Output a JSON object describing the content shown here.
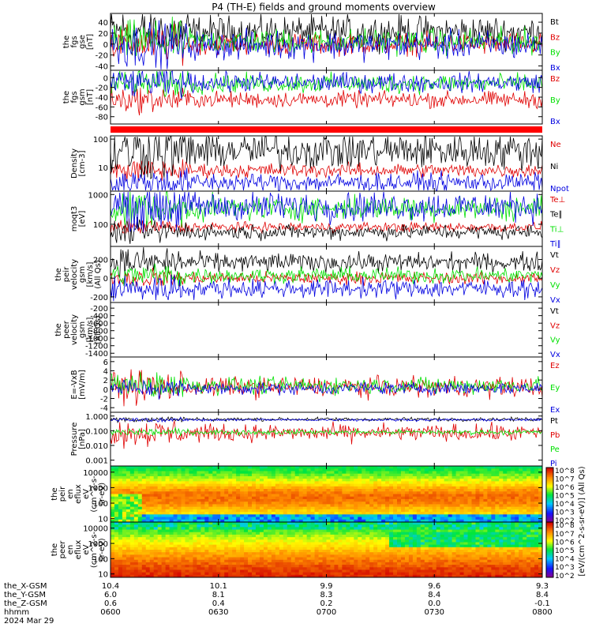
{
  "title": "P4 (TH-E) fields and ground moments overview",
  "chart_data": [
    {
      "id": "fgs_gse",
      "type": "line",
      "ylabel": [
        "the",
        "fgs",
        "gse",
        "[nT]"
      ],
      "ticks": [
        "40",
        "20",
        "0",
        "-20",
        "-40"
      ],
      "tick_values": [
        40,
        20,
        0,
        -20,
        -40
      ],
      "ylim": [
        -48,
        56
      ],
      "series": [
        {
          "name": "Bt",
          "color": "#000000",
          "base": 22,
          "amp": 18
        },
        {
          "name": "Bz",
          "color": "#e00000",
          "base": 0,
          "amp": 12
        },
        {
          "name": "By",
          "color": "#00e000",
          "base": 5,
          "amp": 14
        },
        {
          "name": "Bx",
          "color": "#0000e0",
          "base": -2,
          "amp": 16
        }
      ]
    },
    {
      "id": "fgs_gsm",
      "type": "line",
      "ylabel": [
        "the",
        "fgs",
        "gsm",
        "[nT]"
      ],
      "ticks": [
        "0",
        "-20",
        "-40",
        "-60",
        "-80"
      ],
      "tick_values": [
        0,
        -20,
        -40,
        -60,
        -80
      ],
      "ylim": [
        -95,
        15
      ],
      "series": [
        {
          "name": "Bz",
          "color": "#e00000",
          "base": -45,
          "amp": 10
        },
        {
          "name": "By",
          "color": "#00e000",
          "base": -12,
          "amp": 12
        },
        {
          "name": "Bx",
          "color": "#0000e0",
          "base": -10,
          "amp": 12
        }
      ]
    },
    {
      "id": "density",
      "type": "line",
      "scale": "log",
      "ylabel": [
        "Density",
        "[cm-3]"
      ],
      "ticks": [
        "100",
        "10"
      ],
      "tick_values": [
        100,
        10
      ],
      "ylim": [
        1.5,
        130
      ],
      "series": [
        {
          "name": "Ne",
          "color": "#e00000",
          "base": 8,
          "amp": 0.3
        },
        {
          "name": "Ni",
          "color": "#000000",
          "base": 40,
          "amp": 0.8
        },
        {
          "name": "Npot",
          "color": "#0000e0",
          "base": 3,
          "amp": 0.4
        }
      ]
    },
    {
      "id": "temperature",
      "type": "line",
      "scale": "log",
      "ylabel": [
        "moqt3",
        "[eV]"
      ],
      "ticks": [
        "1000",
        "100"
      ],
      "tick_values": [
        1000,
        100
      ],
      "ylim": [
        18,
        1300
      ],
      "series": [
        {
          "name": "Te⊥",
          "color": "#e00000",
          "base": 80,
          "amp": 0.2
        },
        {
          "name": "Te∥",
          "color": "#000000",
          "base": 55,
          "amp": 0.3
        },
        {
          "name": "Ti⊥",
          "color": "#00e000",
          "base": 350,
          "amp": 0.5
        },
        {
          "name": "Ti∥",
          "color": "#0000e0",
          "base": 400,
          "amp": 0.6
        }
      ]
    },
    {
      "id": "peir_velocity",
      "type": "line",
      "ylabel": [
        "the",
        "peir",
        "velocity",
        "gsm",
        "[km/s]",
        "(All Qs)"
      ],
      "ticks": [
        "200",
        "0",
        "-200"
      ],
      "tick_values": [
        200,
        0,
        -200
      ],
      "ylim": [
        -260,
        340
      ],
      "series": [
        {
          "name": "Vt",
          "color": "#000000",
          "base": 170,
          "amp": 60
        },
        {
          "name": "Vz",
          "color": "#e00000",
          "base": 0,
          "amp": 40
        },
        {
          "name": "Vy",
          "color": "#00e000",
          "base": 30,
          "amp": 50
        },
        {
          "name": "Vx",
          "color": "#0000e0",
          "base": -110,
          "amp": 60
        }
      ]
    },
    {
      "id": "peer_velocity",
      "type": "line",
      "ylabel": [
        "the",
        "peer",
        "velocity",
        "gsm",
        "[km/s]",
        "(All Qs)"
      ],
      "ticks": [
        "-200",
        "-400",
        "-600",
        "-800",
        "-1000",
        "-1200",
        "-1400"
      ],
      "tick_values": [
        -200,
        -400,
        -600,
        -800,
        -1000,
        -1200,
        -1400
      ],
      "ylim": [
        -1500,
        -50
      ],
      "series": [
        {
          "name": "Vt",
          "color": "#000000"
        },
        {
          "name": "Vz",
          "color": "#e00000"
        },
        {
          "name": "Vy",
          "color": "#00e000"
        },
        {
          "name": "Vx",
          "color": "#0000e0"
        }
      ]
    },
    {
      "id": "e_field",
      "type": "line",
      "ylabel": [
        "E=-VxB",
        "[mV/m]"
      ],
      "ticks": [
        "6",
        "4",
        "2",
        "0",
        "-2",
        "-4"
      ],
      "tick_values": [
        6,
        4,
        2,
        0,
        -2,
        -4
      ],
      "ylim": [
        -5,
        7
      ],
      "series": [
        {
          "name": "Ez",
          "color": "#e00000",
          "base": 0.5,
          "amp": 1.3
        },
        {
          "name": "Ey",
          "color": "#00e000",
          "base": 0.8,
          "amp": 1.1
        },
        {
          "name": "Ex",
          "color": "#0000e0",
          "base": 0.2,
          "amp": 0.8
        }
      ]
    },
    {
      "id": "pressure",
      "type": "line",
      "scale": "log",
      "ylabel": [
        "Pressure",
        "[nPa]"
      ],
      "ticks": [
        "1.000",
        "0.100",
        "0.010",
        "0.001"
      ],
      "tick_values": [
        1,
        0.1,
        0.01,
        0.001
      ],
      "ylim": [
        0.0004,
        1.8
      ],
      "series": [
        {
          "name": "Pt",
          "color": "#000000",
          "base": 0.6,
          "amp": 0.15
        },
        {
          "name": "Pb",
          "color": "#e00000",
          "base": 0.07,
          "amp": 0.7
        },
        {
          "name": "Pe",
          "color": "#00e000",
          "base": 0.08,
          "amp": 0.2
        },
        {
          "name": "Pi",
          "color": "#0000e0",
          "base": 0.55,
          "amp": 0.1
        }
      ]
    },
    {
      "id": "peir_eflux",
      "type": "heatmap",
      "scale": "log",
      "ylabel": [
        "the",
        "peir",
        "en",
        "eflux",
        "eV",
        "(cm^2-s-",
        "sr-eV)"
      ],
      "ticks": [
        "10000",
        "1000",
        "100",
        "10"
      ],
      "tick_values": [
        10000,
        1000,
        100,
        10
      ],
      "ylim": [
        6,
        25000
      ]
    },
    {
      "id": "peer_eflux",
      "type": "heatmap",
      "scale": "log",
      "ylabel": [
        "the",
        "peer",
        "en",
        "eflux",
        "eV",
        "(cm^2-s-",
        "sr-eV)"
      ],
      "ticks": [
        "10000",
        "1000",
        "100",
        "10"
      ],
      "tick_values": [
        10000,
        1000,
        100,
        10
      ],
      "ylim": [
        6,
        25000
      ]
    }
  ],
  "colorbars": [
    {
      "ticks": [
        "10^8",
        "10^7",
        "10^6",
        "10^5",
        "10^4",
        "10^3",
        "10^2"
      ],
      "tick_exps": [
        8,
        7,
        6,
        5,
        4,
        3,
        2
      ]
    },
    {
      "ticks": [
        "10^8",
        "10^7",
        "10^6",
        "10^5",
        "10^4",
        "10^3",
        "10^2"
      ],
      "tick_exps": [
        8,
        7,
        6,
        5,
        4,
        3,
        2
      ]
    }
  ],
  "colorbar_label": "[eV/(cm^2-s-sr-eV)] (All Qs)",
  "time_axis": {
    "rows": [
      {
        "label": "the_X-GSM",
        "values": [
          "10.4",
          "10.1",
          "9.9",
          "9.6",
          "9.3"
        ]
      },
      {
        "label": "the_Y-GSM",
        "values": [
          "6.0",
          "8.1",
          "8.3",
          "8.4",
          "8.4"
        ]
      },
      {
        "label": "the_Z-GSM",
        "values": [
          "0.6",
          "0.4",
          "0.2",
          "0.0",
          "-0.1"
        ]
      },
      {
        "label": "hhmm",
        "values": [
          "0600",
          "0630",
          "0700",
          "0730",
          "0800"
        ]
      }
    ],
    "date": "2024 Mar 29"
  }
}
